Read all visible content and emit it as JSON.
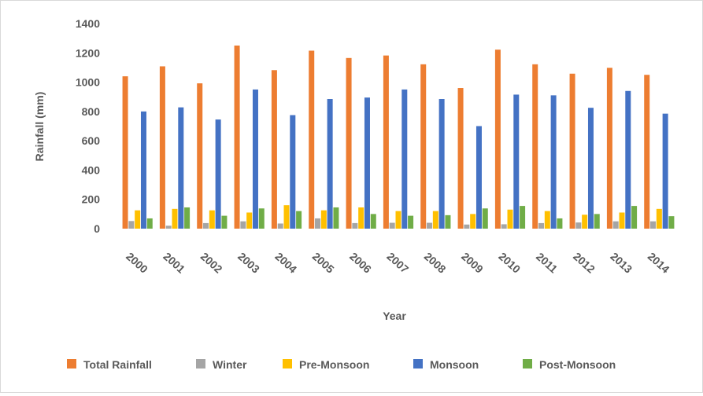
{
  "chart_data": {
    "type": "bar",
    "title": "",
    "xlabel": "Year",
    "ylabel": "Rainfall (mm)",
    "ylim": [
      0,
      1400
    ],
    "yticks": [
      "0",
      "200",
      "400",
      "600",
      "800",
      "1000",
      "1200",
      "1400"
    ],
    "grid": false,
    "legend_position": "bottom",
    "categories": [
      "2000",
      "2001",
      "2002",
      "2003",
      "2004",
      "2005",
      "2006",
      "2007",
      "2008",
      "2009",
      "2010",
      "2011",
      "2012",
      "2013",
      "2014"
    ],
    "series": [
      {
        "name": "Total Rainfall",
        "color": "#ED7D31",
        "values": [
          1040,
          1108,
          992,
          1250,
          1082,
          1215,
          1165,
          1182,
          1122,
          960,
          1222,
          1122,
          1058,
          1098,
          1050
        ]
      },
      {
        "name": "Winter",
        "color": "#A5A5A5",
        "values": [
          52,
          20,
          38,
          50,
          35,
          70,
          38,
          40,
          40,
          28,
          30,
          38,
          42,
          50,
          50
        ]
      },
      {
        "name": "Pre-Monsoon",
        "color": "#FFC000",
        "values": [
          125,
          135,
          125,
          110,
          160,
          125,
          145,
          120,
          120,
          100,
          130,
          120,
          95,
          110,
          135
        ]
      },
      {
        "name": "Monsoon",
        "color": "#4472C4",
        "values": [
          800,
          828,
          745,
          950,
          775,
          885,
          895,
          950,
          885,
          700,
          915,
          910,
          825,
          940,
          785
        ]
      },
      {
        "name": "Post-Monsoon",
        "color": "#70AD47",
        "values": [
          70,
          145,
          88,
          138,
          120,
          145,
          100,
          88,
          92,
          138,
          155,
          70,
          100,
          155,
          85
        ]
      }
    ]
  }
}
